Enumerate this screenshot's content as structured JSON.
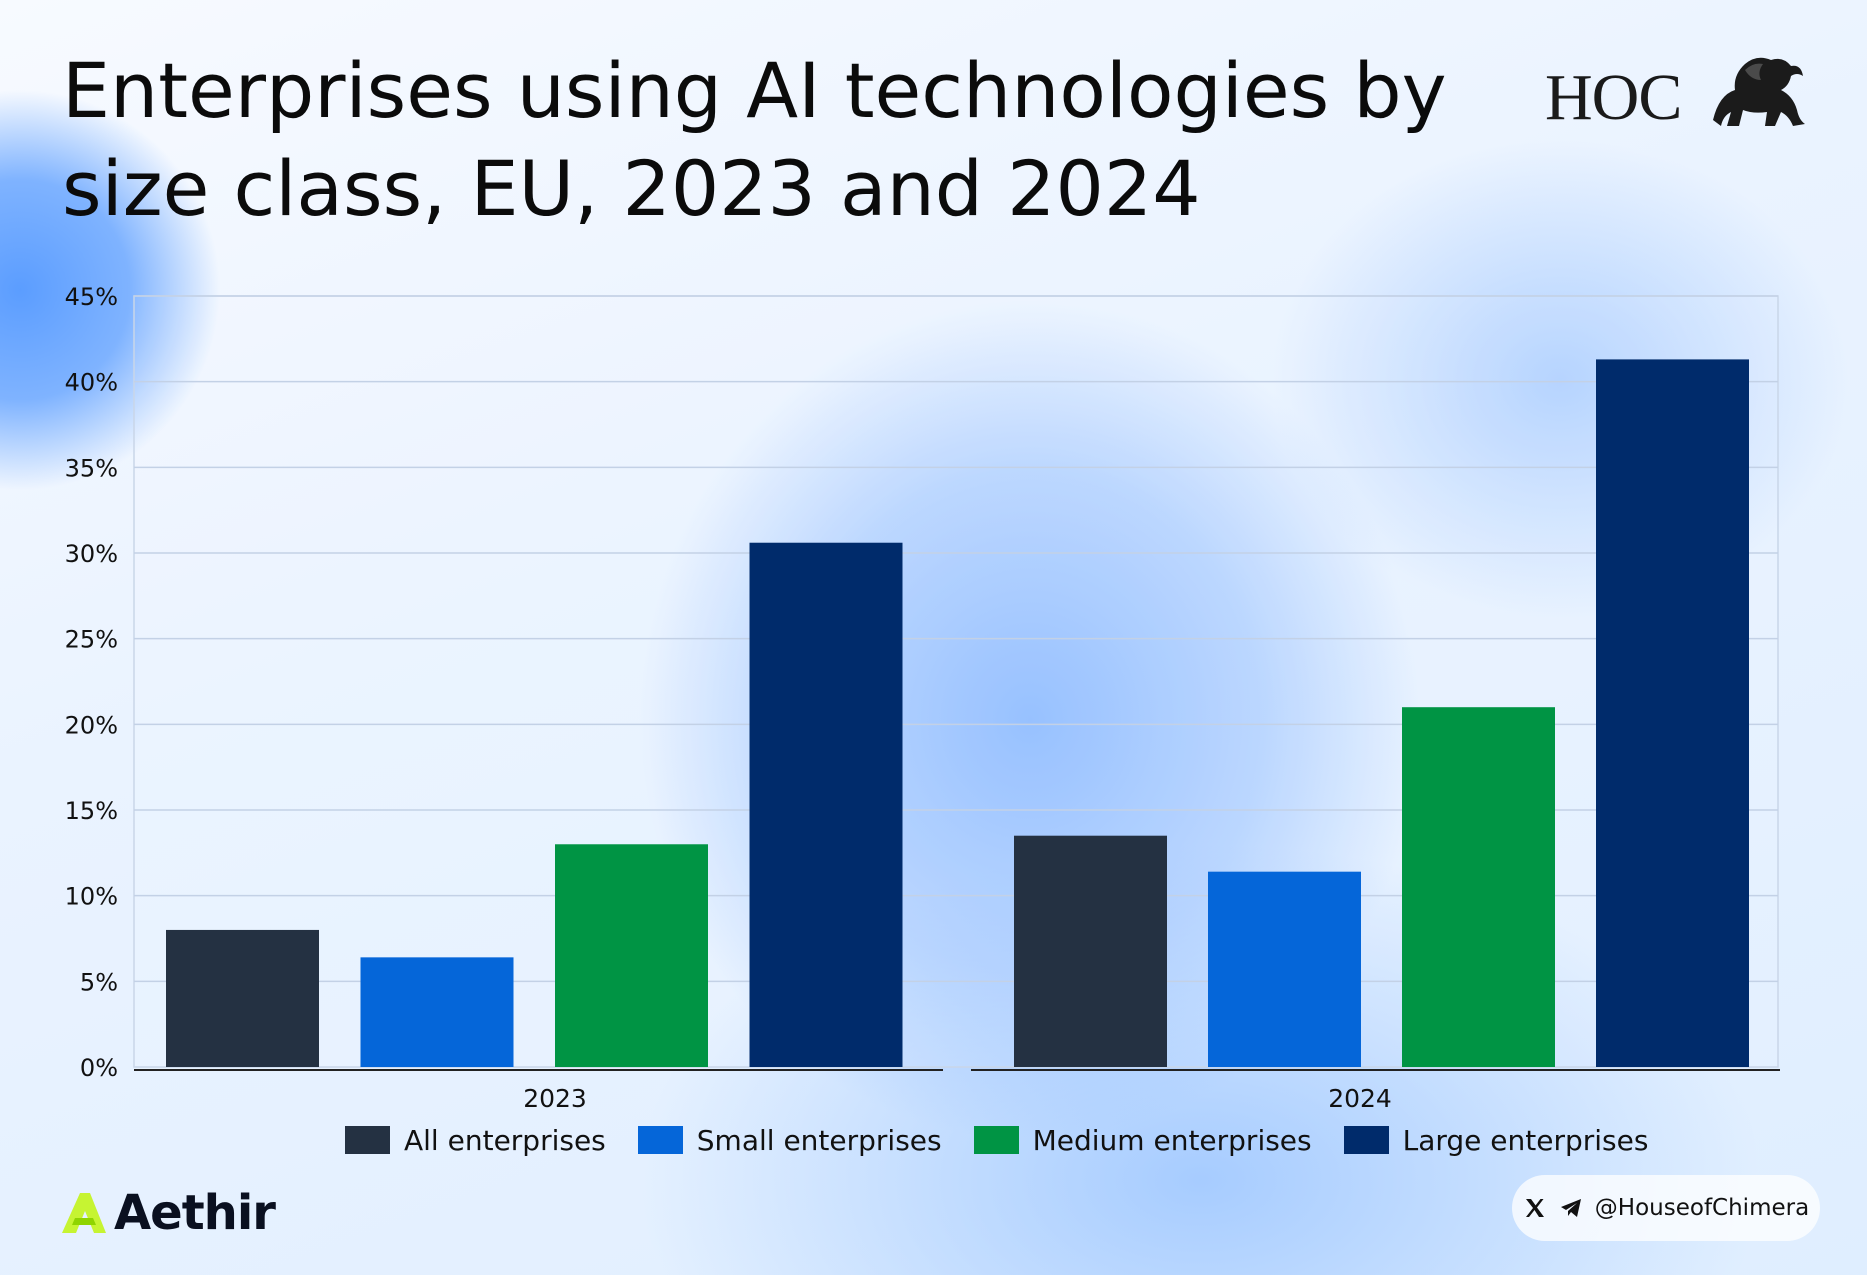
{
  "header": {
    "title": "Enterprises using AI technologies by size class, EU, 2023 and 2024",
    "logo_text": "HOC"
  },
  "chart_data": {
    "type": "bar",
    "title": "Enterprises using AI technologies by size class, EU, 2023 and 2024",
    "categories": [
      "2023",
      "2024"
    ],
    "series": [
      {
        "name": "All enterprises",
        "color": "#243142",
        "values": [
          8.0,
          13.5
        ]
      },
      {
        "name": "Small enterprises",
        "color": "#0566d9",
        "values": [
          6.4,
          11.4
        ]
      },
      {
        "name": "Medium enterprises",
        "color": "#009444",
        "values": [
          13.0,
          21.0
        ]
      },
      {
        "name": "Large enterprises",
        "color": "#002b6b",
        "values": [
          30.6,
          41.3
        ]
      }
    ],
    "yticks": [
      "0%",
      "5%",
      "10%",
      "15%",
      "20%",
      "25%",
      "30%",
      "35%",
      "40%",
      "45%"
    ],
    "ylim": [
      0,
      45
    ],
    "grid": true,
    "legend_position": "bottom"
  },
  "footer": {
    "brand": "Aethir",
    "social_handle": "@HouseofChimera",
    "social_icons": [
      "x-icon",
      "telegram-icon"
    ]
  }
}
